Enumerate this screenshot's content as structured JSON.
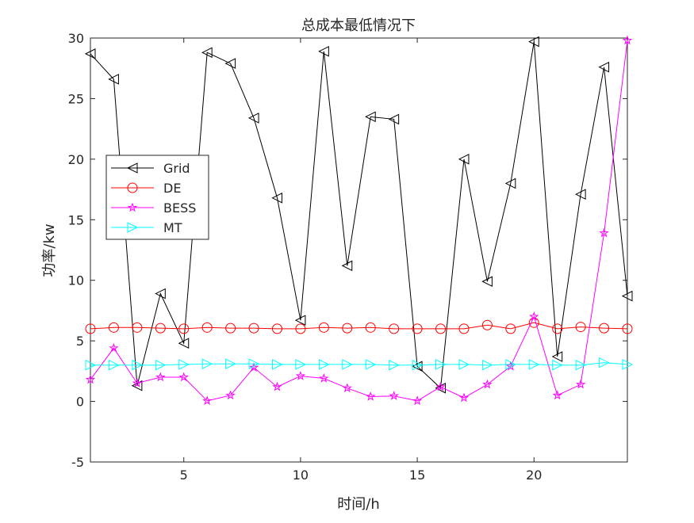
{
  "chart_data": {
    "type": "line",
    "title": "总成本最低情况下",
    "xlabel": "时间/h",
    "ylabel": "功率/kw",
    "xlim": [
      1,
      24
    ],
    "ylim": [
      -5,
      30
    ],
    "xticks": [
      5,
      10,
      15,
      20
    ],
    "yticks": [
      -5,
      0,
      5,
      10,
      15,
      20,
      25,
      30
    ],
    "x": [
      1,
      2,
      3,
      4,
      5,
      6,
      7,
      8,
      9,
      10,
      11,
      12,
      13,
      14,
      15,
      16,
      17,
      18,
      19,
      20,
      21,
      22,
      23,
      24
    ],
    "legend_position": "middle-left",
    "grid": false,
    "series": [
      {
        "name": "Grid",
        "color": "#000000",
        "marker": "triangle-left",
        "values": [
          28.7,
          26.6,
          1.3,
          8.9,
          4.8,
          28.8,
          27.9,
          23.4,
          16.8,
          6.7,
          28.9,
          11.2,
          23.5,
          23.3,
          2.9,
          1.1,
          20.0,
          9.9,
          18.0,
          29.7,
          3.7,
          17.1,
          27.6,
          8.7
        ]
      },
      {
        "name": "DE",
        "color": "#ff0000",
        "marker": "circle",
        "values": [
          6.0,
          6.1,
          6.1,
          6.05,
          6.0,
          6.1,
          6.05,
          6.05,
          6.0,
          6.0,
          6.1,
          6.05,
          6.1,
          6.0,
          6.0,
          6.0,
          6.0,
          6.3,
          6.0,
          6.5,
          6.0,
          6.15,
          6.05,
          6.0
        ]
      },
      {
        "name": "BESS",
        "color": "#ff00ff",
        "marker": "star",
        "values": [
          1.8,
          4.4,
          1.5,
          2.0,
          2.0,
          0.05,
          0.5,
          2.8,
          1.2,
          2.1,
          1.9,
          1.1,
          0.4,
          0.45,
          0.05,
          1.2,
          0.3,
          1.4,
          2.9,
          7.0,
          0.5,
          1.4,
          13.9,
          29.8
        ]
      },
      {
        "name": "MT",
        "color": "#00ffff",
        "marker": "triangle-right",
        "values": [
          3.0,
          3.0,
          3.0,
          3.0,
          3.05,
          3.1,
          3.1,
          3.1,
          3.05,
          3.05,
          3.05,
          3.05,
          3.05,
          3.0,
          3.0,
          3.05,
          3.05,
          3.0,
          3.05,
          3.05,
          3.0,
          3.0,
          3.2,
          3.05
        ]
      }
    ]
  }
}
